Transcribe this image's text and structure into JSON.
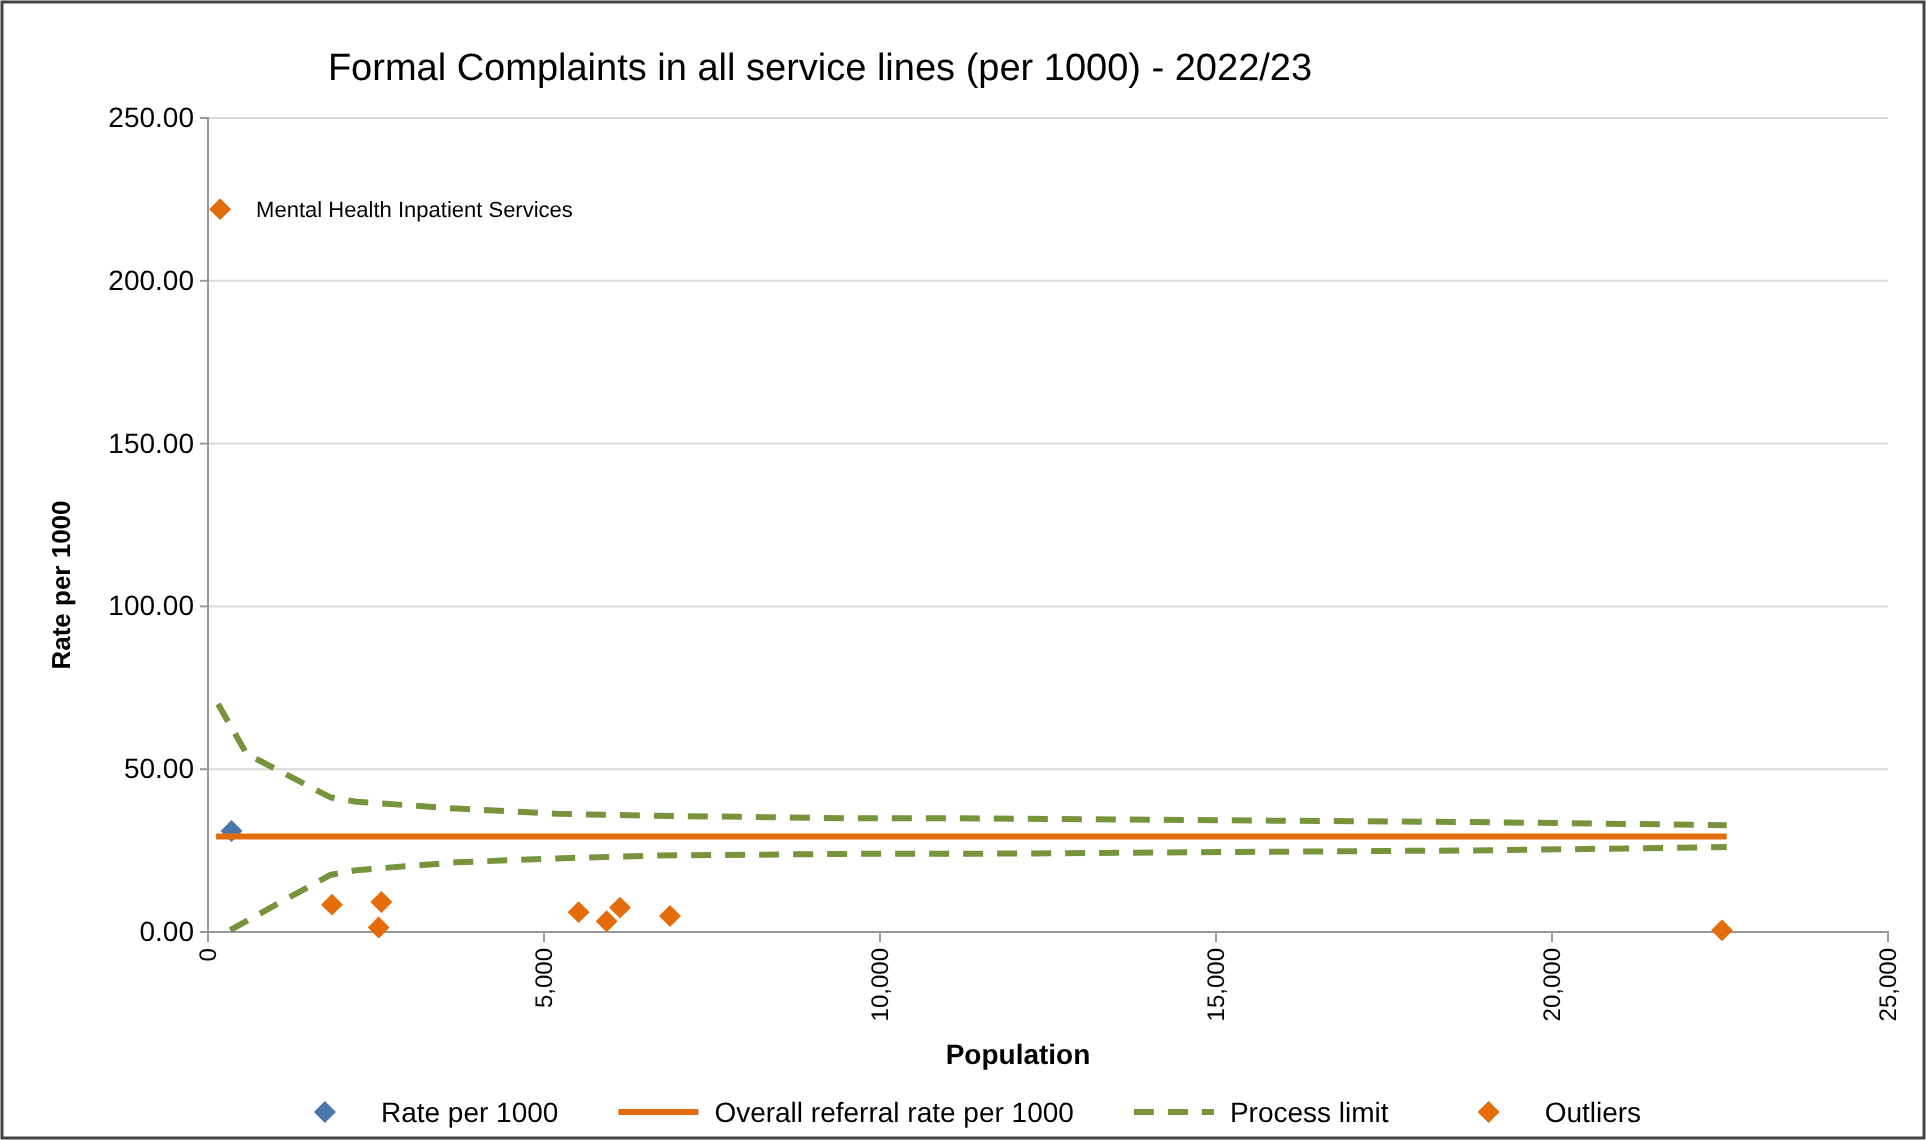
{
  "chart_data": {
    "type": "scatter",
    "title": "Formal Complaints  in all service lines (per 1000) - 2022/23",
    "xlabel": "Population",
    "ylabel": "Rate per 1000",
    "xlim": [
      0,
      25000
    ],
    "xticks": [
      {
        "value": 0,
        "label": "0"
      },
      {
        "value": 5000,
        "label": "5,000"
      },
      {
        "value": 10000,
        "label": "10,000"
      },
      {
        "value": 15000,
        "label": "15,000"
      },
      {
        "value": 20000,
        "label": "20,000"
      },
      {
        "value": 25000,
        "label": "25,000"
      }
    ],
    "ylim": [
      0,
      250
    ],
    "yticks": [
      {
        "value": 0,
        "label": "0.00"
      },
      {
        "value": 50,
        "label": "50.00"
      },
      {
        "value": 100,
        "label": "100.00"
      },
      {
        "value": 150,
        "label": "150.00"
      },
      {
        "value": 200,
        "label": "200.00"
      },
      {
        "value": 250,
        "label": "250.00"
      }
    ],
    "grid": "y",
    "legend": "bottom",
    "series": [
      {
        "name": "Rate per 1000",
        "marker": "diamond",
        "color": "#4a76a8",
        "x": [
          350
        ],
        "values": [
          31
        ]
      },
      {
        "name": "Overall referral rate per 1000",
        "type": "line",
        "marker": "none",
        "line_style": "solid",
        "color": "#e36c0a",
        "x": [
          120,
          22600
        ],
        "values": [
          29.3,
          29.3
        ]
      },
      {
        "name": "Process limit",
        "type": "line",
        "marker": "none",
        "line_style": "dashed",
        "color": "#77933c",
        "x": [
          150,
          575,
          1815,
          2212,
          3700,
          5188,
          6676,
          9652,
          11190,
          19127,
          22600
        ],
        "values": [
          70,
          54.7,
          41.4,
          40,
          37.9,
          36.3,
          35.7,
          34.9,
          34.9,
          33.7,
          32.8
        ]
      },
      {
        "type": "line",
        "marker": "none",
        "line_style": "dashed",
        "color": "#77933c",
        "x": [
          330,
          1815,
          2212,
          3700,
          5188,
          6676,
          9652,
          11190,
          19127,
          22600
        ],
        "values": [
          0.6,
          17.5,
          19,
          21.4,
          22.6,
          23.5,
          24,
          24,
          25.1,
          26.1
        ]
      },
      {
        "name": "Outliers",
        "marker": "diamond",
        "color": "#e46c0a",
        "x": [
          180,
          1845,
          2580,
          2540,
          5515,
          5932,
          6131,
          6875,
          22530
        ],
        "values": [
          222,
          8.4,
          9.2,
          1.4,
          6.1,
          3.3,
          7.5,
          4.9,
          0.5
        ]
      }
    ],
    "annotations": [
      {
        "text": "Mental Health Inpatient Services",
        "x": 180,
        "y": 222
      }
    ]
  }
}
